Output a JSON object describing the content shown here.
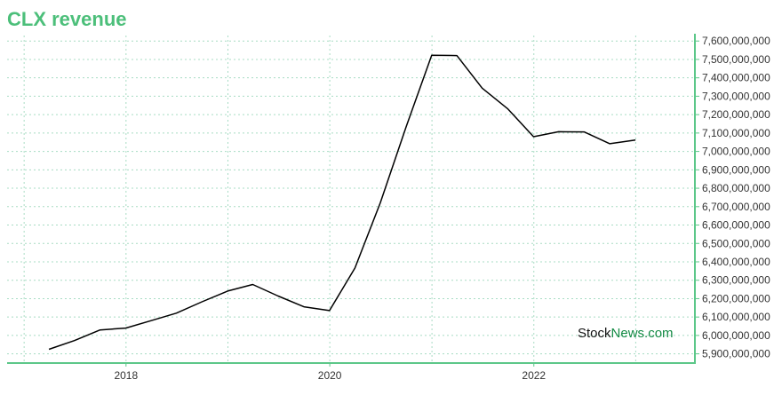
{
  "chart_data": {
    "type": "line",
    "title": "CLX revenue",
    "xlabel": "",
    "ylabel": "",
    "x_ticks": [
      "2018",
      "2020",
      "2022"
    ],
    "x": [
      "2017-03-31",
      "2017-06-30",
      "2017-09-30",
      "2017-12-31",
      "2018-03-31",
      "2018-06-30",
      "2018-09-30",
      "2018-12-31",
      "2019-03-31",
      "2019-06-30",
      "2019-09-30",
      "2019-12-31",
      "2020-03-31",
      "2020-06-30",
      "2020-09-30",
      "2020-12-31",
      "2021-03-31",
      "2021-06-30",
      "2021-09-30",
      "2021-12-31",
      "2022-03-31",
      "2022-06-30",
      "2022-09-30",
      "2022-12-31"
    ],
    "series": [
      {
        "values": [
          5925000000,
          5972000000,
          6030000000,
          6040000000,
          6080000000,
          6121000000,
          6183000000,
          6241000000,
          6277000000,
          6214000000,
          6156000000,
          6135000000,
          6366000000,
          6721000000,
          7132000000,
          7523000000,
          7521000000,
          7344000000,
          7231000000,
          7080000000,
          7107000000,
          7106000000,
          7042000000,
          7062000000
        ]
      }
    ],
    "y_ticks": [
      "5,900,000,000",
      "6,000,000,000",
      "6,100,000,000",
      "6,200,000,000",
      "6,300,000,000",
      "6,400,000,000",
      "6,500,000,000",
      "6,600,000,000",
      "6,700,000,000",
      "6,800,000,000",
      "6,900,000,000",
      "7,000,000,000",
      "7,100,000,000",
      "7,200,000,000",
      "7,300,000,000",
      "7,400,000,000",
      "7,500,000,000",
      "7,600,000,000"
    ],
    "ylim": [
      5850000000,
      7630000000
    ],
    "xlim": [
      "2016-11-01",
      "2023-08-01"
    ],
    "grid": true,
    "legend": "none"
  },
  "watermark": {
    "part1": "Stock",
    "part2": "News",
    "part3": ".com"
  },
  "colors": {
    "title": "#4cbf7a",
    "axis": "#5cc789",
    "grid": "#a8dcc4",
    "line": "#000000",
    "watermark_dark": "#111111",
    "watermark_green": "#138a44"
  }
}
